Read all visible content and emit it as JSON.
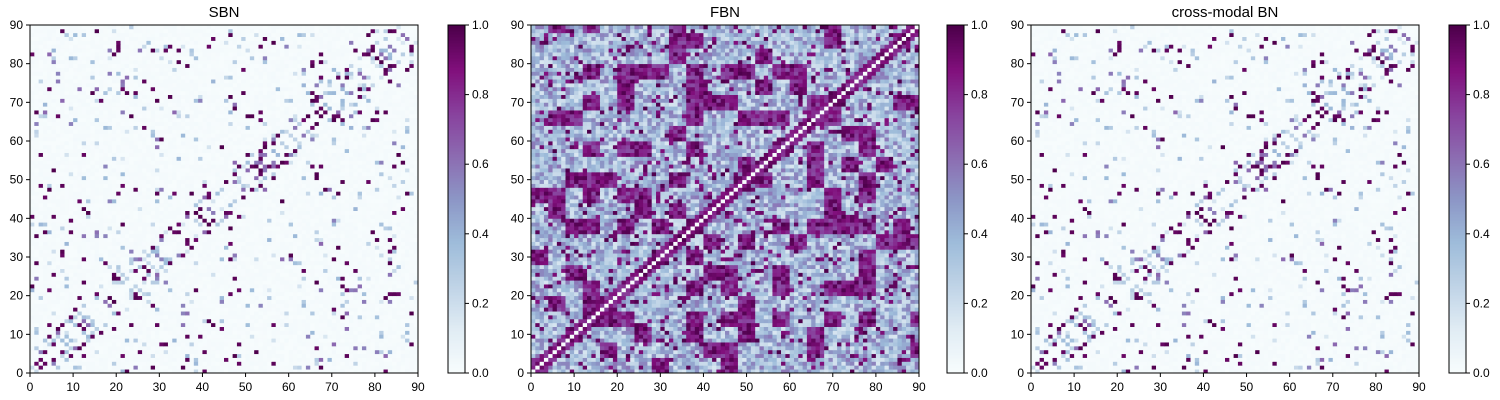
{
  "figure": {
    "background": "#ffffff"
  },
  "colormap": {
    "name": "BuPu",
    "stops": [
      [
        0.0,
        "#f7fcfd"
      ],
      [
        0.125,
        "#e0ecf4"
      ],
      [
        0.25,
        "#bfd3e6"
      ],
      [
        0.375,
        "#9ebcda"
      ],
      [
        0.5,
        "#8c96c6"
      ],
      [
        0.625,
        "#8c6bb1"
      ],
      [
        0.75,
        "#88419d"
      ],
      [
        0.875,
        "#810f7c"
      ],
      [
        1.0,
        "#4d004b"
      ]
    ]
  },
  "chart_data": [
    {
      "type": "heatmap",
      "title": "SBN",
      "grid_size": 90,
      "pattern": "sparse",
      "xlim": [
        0,
        90
      ],
      "ylim": [
        0,
        90
      ],
      "x_ticks": [
        "0",
        "10",
        "20",
        "30",
        "40",
        "50",
        "60",
        "70",
        "80",
        "90"
      ],
      "y_ticks": [
        "0",
        "10",
        "20",
        "30",
        "40",
        "50",
        "60",
        "70",
        "80",
        "90"
      ],
      "colorbar": {
        "range": [
          0.0,
          1.0
        ],
        "ticks": [
          "0.0",
          "0.2",
          "0.4",
          "0.6",
          "0.8",
          "1.0"
        ]
      },
      "grid": false
    },
    {
      "type": "heatmap",
      "title": "FBN",
      "grid_size": 90,
      "pattern": "dense",
      "xlim": [
        0,
        90
      ],
      "ylim": [
        0,
        90
      ],
      "x_ticks": [
        "0",
        "10",
        "20",
        "30",
        "40",
        "50",
        "60",
        "70",
        "80",
        "90"
      ],
      "y_ticks": [
        "0",
        "10",
        "20",
        "30",
        "40",
        "50",
        "60",
        "70",
        "80",
        "90"
      ],
      "colorbar": {
        "range": [
          0.0,
          1.0
        ],
        "ticks": [
          "0.0",
          "0.2",
          "0.4",
          "0.6",
          "0.8",
          "1.0"
        ]
      },
      "grid": false
    },
    {
      "type": "heatmap",
      "title": "cross-modal BN",
      "grid_size": 90,
      "pattern": "sparse",
      "xlim": [
        0,
        90
      ],
      "ylim": [
        0,
        90
      ],
      "x_ticks": [
        "0",
        "10",
        "20",
        "30",
        "40",
        "50",
        "60",
        "70",
        "80",
        "90"
      ],
      "y_ticks": [
        "0",
        "10",
        "20",
        "30",
        "40",
        "50",
        "60",
        "70",
        "80",
        "90"
      ],
      "colorbar": {
        "range": [
          0.0,
          1.0
        ],
        "ticks": [
          "0.0",
          "0.2",
          "0.4",
          "0.6",
          "0.8",
          "1.0"
        ]
      },
      "grid": false
    }
  ]
}
